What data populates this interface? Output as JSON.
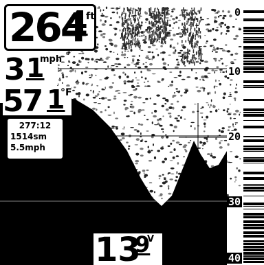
{
  "readouts": {
    "depth": {
      "main": "264",
      "frac": "4",
      "unit": "ft"
    },
    "speed": {
      "main": "3",
      "frac": "1",
      "unit": "mph"
    },
    "temperature": {
      "main": "57",
      "frac": "1",
      "unit": "°F"
    },
    "navigation": {
      "heading": "277:12",
      "distance": "1514sm",
      "speed": "5.5mph"
    },
    "voltage": {
      "main": "13",
      "frac": "9",
      "unit": "V"
    }
  },
  "depth_scale": {
    "labels": [
      "0",
      "10",
      "20",
      "30",
      "40"
    ]
  },
  "colors": {
    "water_noise": "#000000",
    "bottom": "#000000",
    "background": "#ffffff"
  }
}
